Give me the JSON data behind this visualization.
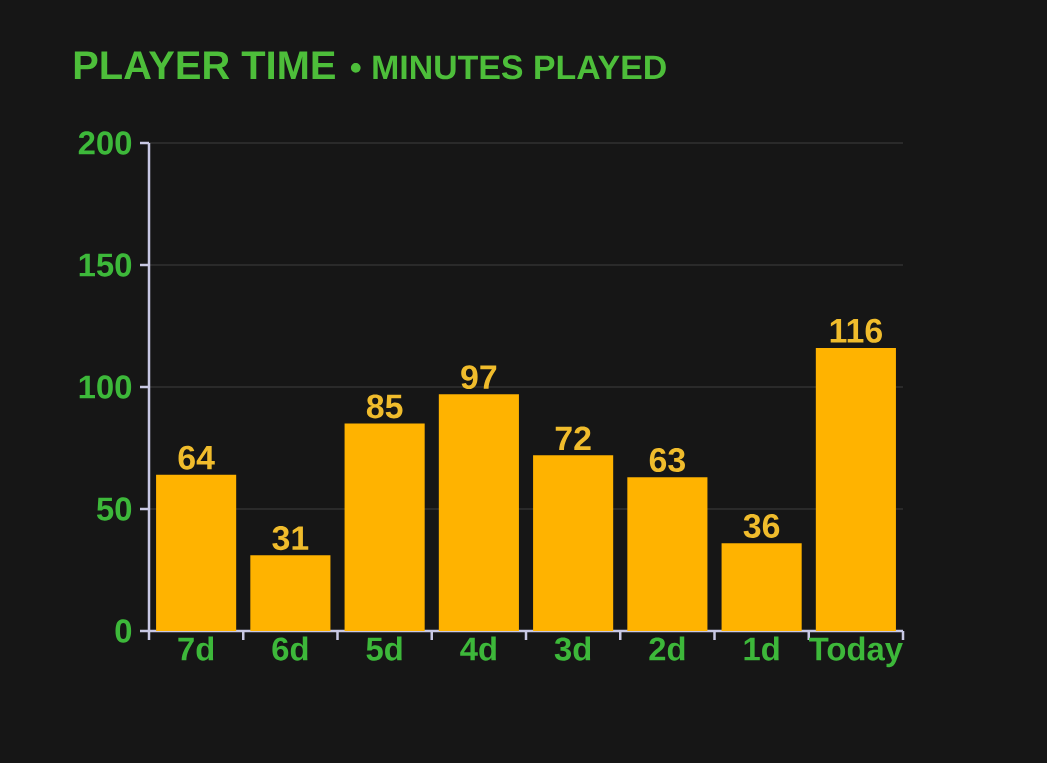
{
  "chart_data": {
    "type": "bar",
    "title": "PLAYER TIME",
    "subtitle": "• MINUTES PLAYED",
    "categories": [
      "7d",
      "6d",
      "5d",
      "4d",
      "3d",
      "2d",
      "1d",
      "Today"
    ],
    "values": [
      64,
      31,
      85,
      97,
      72,
      63,
      36,
      116
    ],
    "color": "#ffb300",
    "ylim": [
      0,
      200
    ],
    "yticks": [
      0,
      50,
      100,
      150,
      200
    ],
    "grid": "y",
    "data_labels": true
  }
}
